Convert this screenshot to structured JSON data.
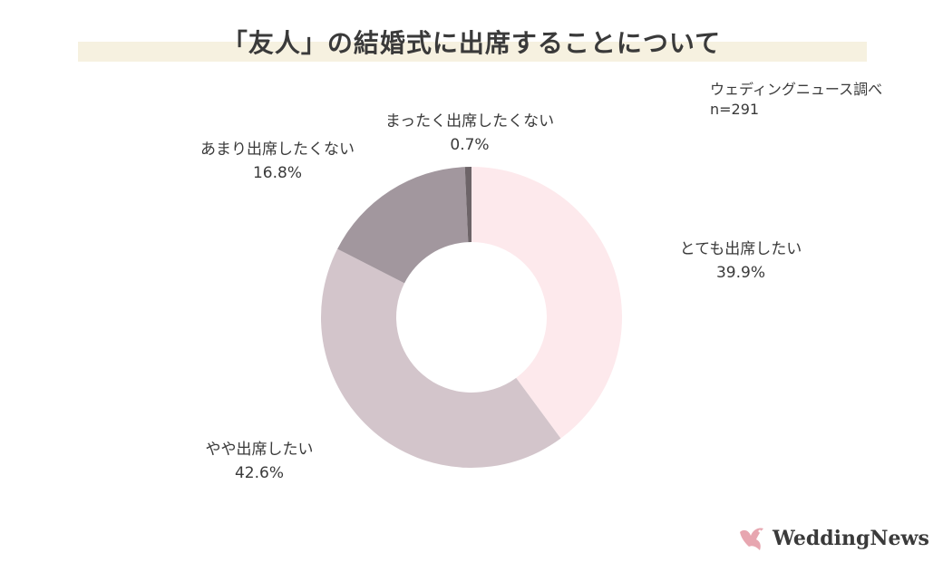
{
  "title": "「友人」の結婚式に出席することについて",
  "source": {
    "line1": "ウェディングニュース調べ",
    "line2": "n=291"
  },
  "brand": {
    "name": "WeddingNews"
  },
  "colors": {
    "title_band": "#f6f1e0",
    "slice_1": "#fde9ec",
    "slice_2": "#d3c5cb",
    "slice_3": "#a2979e",
    "slice_4": "#6d6468",
    "logo": "#e7a6b0"
  },
  "chart_data": {
    "type": "pie",
    "donut": true,
    "categories": [
      "とても出席したい",
      "やや出席したい",
      "あまり出席したくない",
      "まったく出席したくない"
    ],
    "values": [
      39.9,
      42.6,
      16.8,
      0.7
    ],
    "value_labels": [
      "39.9%",
      "42.6%",
      "16.8%",
      "0.7%"
    ],
    "title": "「友人」の結婚式に出席することについて"
  }
}
